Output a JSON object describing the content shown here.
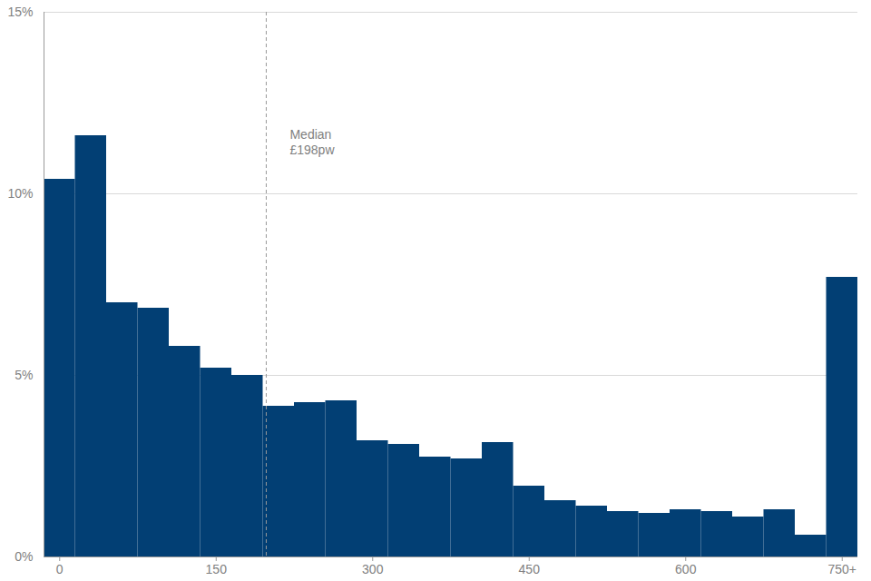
{
  "chart_data": {
    "type": "histogram",
    "bins": [
      -15,
      15,
      45,
      75,
      105,
      135,
      165,
      195,
      225,
      255,
      285,
      315,
      345,
      375,
      405,
      435,
      465,
      495,
      525,
      555,
      585,
      615,
      645,
      675,
      705,
      735,
      765
    ],
    "values": [
      10.4,
      11.6,
      7.0,
      6.85,
      5.8,
      5.2,
      5.0,
      4.15,
      4.25,
      4.3,
      3.2,
      3.1,
      2.75,
      2.7,
      3.15,
      1.95,
      1.55,
      1.4,
      1.25,
      1.2,
      1.3,
      1.25,
      1.1,
      1.3,
      0.6,
      7.7
    ],
    "color": "#023f74",
    "xlim": [
      -15,
      765
    ],
    "xticks": [
      0,
      150,
      300,
      450,
      600,
      {
        "value": 750,
        "label": "750+"
      }
    ],
    "ylim": [
      0,
      15
    ],
    "yticks": [
      {
        "value": 0,
        "label": "0%"
      },
      {
        "value": 5,
        "label": "5%"
      },
      {
        "value": 10,
        "label": "10%"
      },
      {
        "value": 15,
        "label": "15%"
      }
    ],
    "grid": true,
    "annotations": [
      {
        "text": "Median\n£198pw",
        "x": 198
      }
    ]
  }
}
